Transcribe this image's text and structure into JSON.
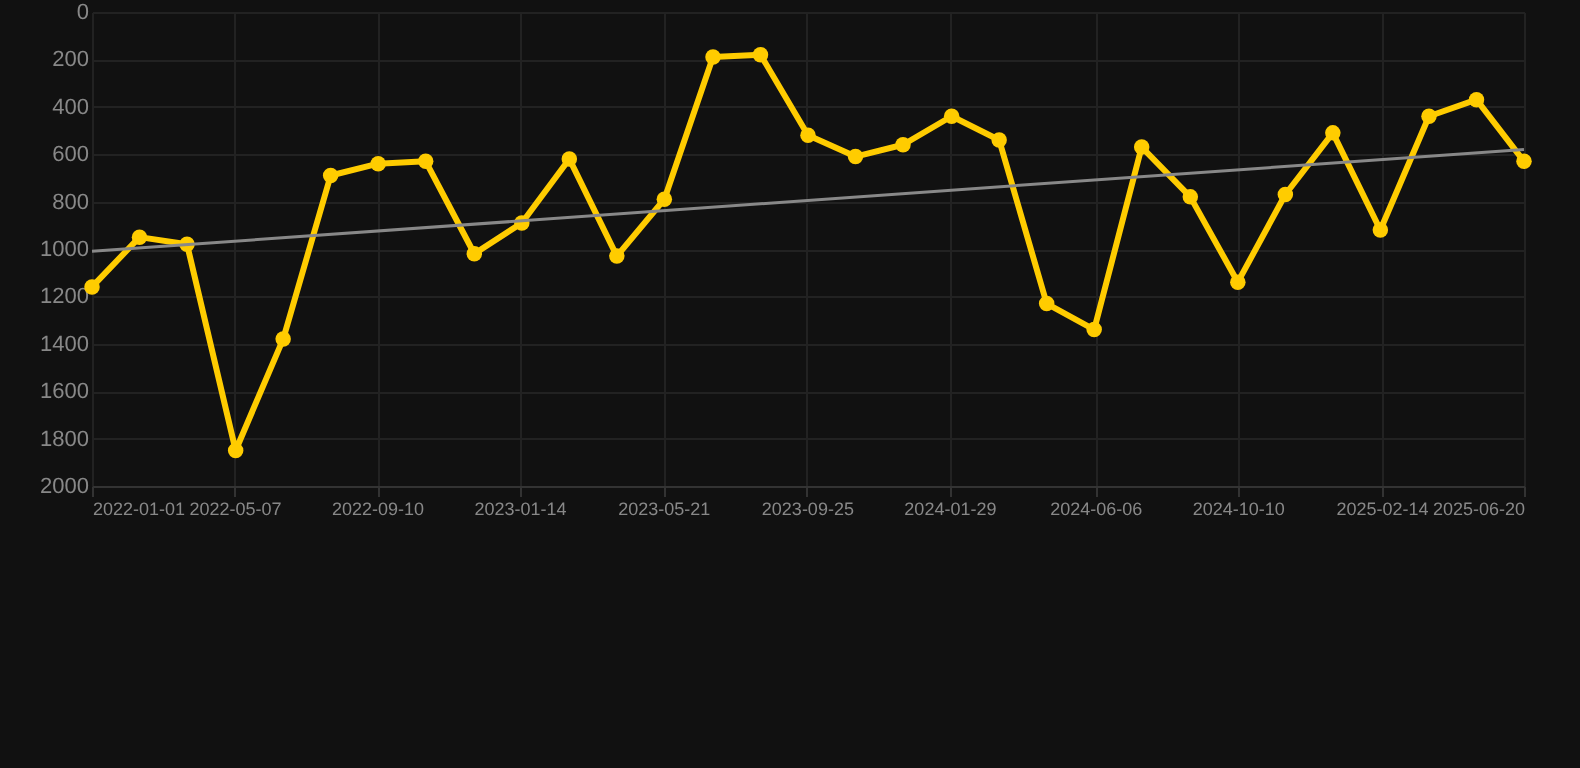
{
  "chart_data": {
    "type": "line",
    "x": [
      "2022-01-01",
      "2022-02-12",
      "2022-03-26",
      "2022-05-08",
      "2022-06-19",
      "2022-07-31",
      "2022-09-11",
      "2022-10-23",
      "2022-12-05",
      "2023-01-16",
      "2023-02-27",
      "2023-04-10",
      "2023-05-22",
      "2023-07-04",
      "2023-08-15",
      "2023-09-26",
      "2023-11-07",
      "2023-12-19",
      "2024-01-31",
      "2024-03-13",
      "2024-04-24",
      "2024-06-05",
      "2024-07-17",
      "2024-08-29",
      "2024-10-10",
      "2024-11-21",
      "2025-01-02",
      "2025-02-13",
      "2025-03-28",
      "2025-05-09",
      "2025-06-20"
    ],
    "series": [
      {
        "color": "#ffcc00",
        "marker": "circle",
        "values": [
          1160,
          950,
          980,
          1850,
          1380,
          690,
          640,
          630,
          1020,
          890,
          620,
          1030,
          790,
          190,
          180,
          520,
          610,
          560,
          440,
          540,
          1230,
          1340,
          570,
          780,
          1140,
          770,
          510,
          920,
          440,
          370,
          630
        ]
      },
      {
        "type": "line",
        "color": "#888888",
        "marker": "none",
        "x": [
          "2022-01-01",
          "2025-06-20"
        ],
        "values": [
          1010,
          580
        ]
      }
    ],
    "xlim": [
      "2022-01-01",
      "2025-06-20"
    ],
    "xticks": [
      "2022-01-01",
      "2022-05-07",
      "2022-09-10",
      "2023-01-14",
      "2023-05-21",
      "2023-09-25",
      "2024-01-29",
      "2024-06-06",
      "2024-10-10",
      "2025-02-14",
      "2025-06-20"
    ],
    "ylim": [
      2000,
      0
    ],
    "yticks": [
      0,
      200,
      400,
      600,
      800,
      1000,
      1200,
      1400,
      1600,
      1800,
      2000
    ],
    "grid": true
  }
}
